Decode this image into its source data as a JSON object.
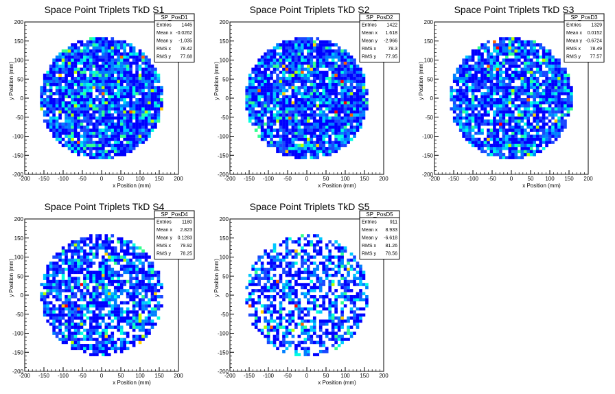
{
  "chart_data": [
    {
      "type": "heatmap",
      "title": "Space Point Triplets TkD S1",
      "xlabel": "x Position (mm)",
      "ylabel": "y Position (mm)",
      "xlim": [
        -200,
        200
      ],
      "ylim": [
        -200,
        200
      ],
      "xticks": [
        "-200",
        "-150",
        "-100",
        "-50",
        "0",
        "50",
        "100",
        "150",
        "200"
      ],
      "yticks": [
        "-200",
        "-150",
        "-100",
        "-50",
        "0",
        "50",
        "100",
        "150",
        "200"
      ],
      "stats": {
        "name": "SP_PosD1",
        "rows": [
          {
            "label": "Entries",
            "value": "1445"
          },
          {
            "label": "Mean x",
            "value": "-0.0262"
          },
          {
            "label": "Mean y",
            "value": "-1.035"
          },
          {
            "label": "RMS x",
            "value": "78.42"
          },
          {
            "label": "RMS y",
            "value": "77.68"
          }
        ]
      },
      "entries": 1445,
      "mean_x": -0.0262,
      "mean_y": -1.035,
      "rms_x": 78.42,
      "rms_y": 77.68,
      "radius_mm": 160
    },
    {
      "type": "heatmap",
      "title": "Space Point Triplets TkD S2",
      "xlabel": "x Position (mm)",
      "ylabel": "y Position (mm)",
      "xlim": [
        -200,
        200
      ],
      "ylim": [
        -200,
        200
      ],
      "xticks": [
        "-200",
        "-150",
        "-100",
        "-50",
        "0",
        "50",
        "100",
        "150",
        "200"
      ],
      "yticks": [
        "-200",
        "-150",
        "-100",
        "-50",
        "0",
        "50",
        "100",
        "150",
        "200"
      ],
      "stats": {
        "name": "SP_PosD2",
        "rows": [
          {
            "label": "Entries",
            "value": "1422"
          },
          {
            "label": "Mean x",
            "value": "1.618"
          },
          {
            "label": "Mean y",
            "value": "-2.966"
          },
          {
            "label": "RMS x",
            "value": "78.3"
          },
          {
            "label": "RMS y",
            "value": "77.95"
          }
        ]
      },
      "entries": 1422,
      "mean_x": 1.618,
      "mean_y": -2.966,
      "rms_x": 78.3,
      "rms_y": 77.95,
      "radius_mm": 160
    },
    {
      "type": "heatmap",
      "title": "Space Point Triplets TkD S3",
      "xlabel": "x Position (mm)",
      "ylabel": "y Position (mm)",
      "xlim": [
        -200,
        200
      ],
      "ylim": [
        -200,
        200
      ],
      "xticks": [
        "-200",
        "-150",
        "-100",
        "-50",
        "0",
        "50",
        "100",
        "150",
        "200"
      ],
      "yticks": [
        "-200",
        "-150",
        "-100",
        "-50",
        "0",
        "50",
        "100",
        "150",
        "200"
      ],
      "stats": {
        "name": "SP_PosD3",
        "rows": [
          {
            "label": "Entries",
            "value": "1329"
          },
          {
            "label": "Mean x",
            "value": "0.0152"
          },
          {
            "label": "Mean y",
            "value": "-0.6724"
          },
          {
            "label": "RMS x",
            "value": "78.49"
          },
          {
            "label": "RMS y",
            "value": "77.57"
          }
        ]
      },
      "entries": 1329,
      "mean_x": 0.0152,
      "mean_y": -0.6724,
      "rms_x": 78.49,
      "rms_y": 77.57,
      "radius_mm": 160
    },
    {
      "type": "heatmap",
      "title": "Space Point Triplets TkD S4",
      "xlabel": "x Position (mm)",
      "ylabel": "y Position (mm)",
      "xlim": [
        -200,
        200
      ],
      "ylim": [
        -200,
        200
      ],
      "xticks": [
        "-200",
        "-150",
        "-100",
        "-50",
        "0",
        "50",
        "100",
        "150",
        "200"
      ],
      "yticks": [
        "-200",
        "-150",
        "-100",
        "-50",
        "0",
        "50",
        "100",
        "150",
        "200"
      ],
      "stats": {
        "name": "SP_PosD4",
        "rows": [
          {
            "label": "Entries",
            "value": "1180"
          },
          {
            "label": "Mean x",
            "value": "2.823"
          },
          {
            "label": "Mean y",
            "value": "0.1283"
          },
          {
            "label": "RMS x",
            "value": "79.92"
          },
          {
            "label": "RMS y",
            "value": "78.25"
          }
        ]
      },
      "entries": 1180,
      "mean_x": 2.823,
      "mean_y": 0.1283,
      "rms_x": 79.92,
      "rms_y": 78.25,
      "radius_mm": 160
    },
    {
      "type": "heatmap",
      "title": "Space Point Triplets TkD S5",
      "xlabel": "x Position (mm)",
      "ylabel": "y Position (mm)",
      "xlim": [
        -200,
        200
      ],
      "ylim": [
        -200,
        200
      ],
      "xticks": [
        "-200",
        "-150",
        "-100",
        "-50",
        "0",
        "50",
        "100",
        "150",
        "200"
      ],
      "yticks": [
        "-200",
        "-150",
        "-100",
        "-50",
        "0",
        "50",
        "100",
        "150",
        "200"
      ],
      "stats": {
        "name": "SP_PosD5",
        "rows": [
          {
            "label": "Entries",
            "value": "911"
          },
          {
            "label": "Mean x",
            "value": "8.933"
          },
          {
            "label": "Mean y",
            "value": "-6.618"
          },
          {
            "label": "RMS x",
            "value": "81.26"
          },
          {
            "label": "RMS y",
            "value": "78.56"
          }
        ]
      },
      "entries": 911,
      "mean_x": 8.933,
      "mean_y": -6.618,
      "rms_x": 81.26,
      "rms_y": 78.56,
      "radius_mm": 160
    }
  ],
  "colors": {
    "palette": [
      "#0000ff",
      "#1a47ff",
      "#0080ff",
      "#00c8ff",
      "#00ffe0",
      "#30ff90",
      "#b4ff00",
      "#ffd000",
      "#ff6000",
      "#ff0000"
    ],
    "axis": "#000000",
    "background": "#ffffff"
  }
}
